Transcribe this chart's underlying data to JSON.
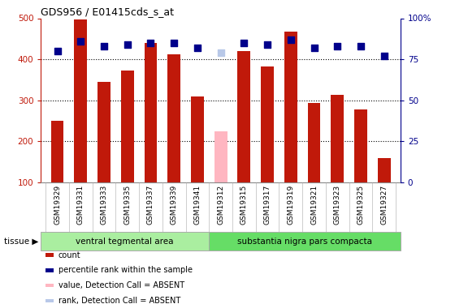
{
  "title": "GDS956 / E01415cds_s_at",
  "samples": [
    "GSM19329",
    "GSM19331",
    "GSM19333",
    "GSM19335",
    "GSM19337",
    "GSM19339",
    "GSM19341",
    "GSM19312",
    "GSM19315",
    "GSM19317",
    "GSM19319",
    "GSM19321",
    "GSM19323",
    "GSM19325",
    "GSM19327"
  ],
  "bar_values": [
    250,
    498,
    345,
    373,
    440,
    413,
    310,
    225,
    420,
    382,
    467,
    293,
    314,
    278,
    160
  ],
  "bar_absent": [
    false,
    false,
    false,
    false,
    false,
    false,
    false,
    true,
    false,
    false,
    false,
    false,
    false,
    false,
    false
  ],
  "rank_values": [
    80,
    86,
    83,
    84,
    85,
    85,
    82,
    79,
    85,
    84,
    87,
    82,
    83,
    83,
    77
  ],
  "rank_absent": [
    false,
    false,
    false,
    false,
    false,
    false,
    false,
    true,
    false,
    false,
    false,
    false,
    false,
    false,
    false
  ],
  "bar_color_normal": "#C0190A",
  "bar_color_absent": "#FFB6C1",
  "rank_color_normal": "#00008B",
  "rank_color_absent": "#B8C8E8",
  "ylim_left": [
    100,
    500
  ],
  "ylim_right": [
    0,
    100
  ],
  "yticks_left": [
    100,
    200,
    300,
    400,
    500
  ],
  "yticks_right": [
    0,
    25,
    50,
    75,
    100
  ],
  "yticklabels_right": [
    "0",
    "25",
    "50",
    "75",
    "100%"
  ],
  "group1_label": "ventral tegmental area",
  "group2_label": "substantia nigra pars compacta",
  "group1_count": 7,
  "group2_count": 8,
  "tissue_label": "tissue",
  "legend_items": [
    {
      "color": "#C0190A",
      "label": "count"
    },
    {
      "color": "#00008B",
      "label": "percentile rank within the sample"
    },
    {
      "color": "#FFB6C1",
      "label": "value, Detection Call = ABSENT"
    },
    {
      "color": "#B8C8E8",
      "label": "rank, Detection Call = ABSENT"
    }
  ],
  "background_color": "#FFFFFF",
  "bar_width": 0.55,
  "dot_size": 28,
  "xticklabel_bg": "#D8D8D8",
  "group1_color": "#AAEEA0",
  "group2_color": "#66DD66"
}
